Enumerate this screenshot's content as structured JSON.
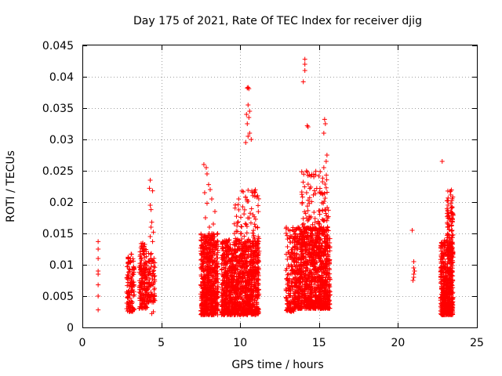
{
  "chart_data": {
    "type": "scatter",
    "title": "Day 175 of 2021, Rate Of TEC Index for receiver djig",
    "xlabel": "GPS time / hours",
    "ylabel": "ROTI / TECUs",
    "xlim": [
      0,
      25
    ],
    "ylim": [
      0,
      0.045
    ],
    "xticks": [
      "0",
      "5",
      "10",
      "15",
      "20",
      "25"
    ],
    "yticks": [
      "0",
      "0.005",
      "0.01",
      "0.015",
      "0.02",
      "0.025",
      "0.03",
      "0.035",
      "0.04",
      "0.045"
    ],
    "grid": true,
    "marker": "+",
    "color": "#ff0000",
    "series": [
      {
        "name": "ROTI",
        "points": [
          [
            1.0,
            0.0137
          ],
          [
            1.0,
            0.0125
          ],
          [
            1.0,
            0.011
          ],
          [
            1.0,
            0.009
          ],
          [
            1.0,
            0.0085
          ],
          [
            1.0,
            0.0068
          ],
          [
            1.0,
            0.005
          ],
          [
            1.0,
            0.0028
          ],
          [
            20.9,
            0.0155
          ],
          [
            21.0,
            0.0105
          ],
          [
            21.0,
            0.0095
          ],
          [
            21.05,
            0.009
          ],
          [
            21.0,
            0.0085
          ],
          [
            21.0,
            0.008
          ],
          [
            20.95,
            0.0075
          ],
          [
            22.8,
            0.0265
          ],
          [
            14.1,
            0.0428
          ],
          [
            14.1,
            0.042
          ],
          [
            14.1,
            0.041
          ],
          [
            14.0,
            0.0392
          ],
          [
            14.3,
            0.032
          ],
          [
            14.25,
            0.0322
          ],
          [
            10.5,
            0.0383
          ],
          [
            10.45,
            0.0382
          ],
          [
            10.55,
            0.0381
          ],
          [
            10.5,
            0.0355
          ],
          [
            10.6,
            0.0345
          ],
          [
            10.4,
            0.034
          ],
          [
            10.55,
            0.0335
          ],
          [
            10.45,
            0.0325
          ],
          [
            10.6,
            0.031
          ],
          [
            10.5,
            0.0305
          ],
          [
            10.7,
            0.03
          ],
          [
            10.35,
            0.0295
          ],
          [
            15.35,
            0.0332
          ],
          [
            15.4,
            0.0325
          ],
          [
            15.3,
            0.031
          ],
          [
            15.5,
            0.0275
          ],
          [
            15.45,
            0.0265
          ],
          [
            15.3,
            0.0255
          ],
          [
            4.3,
            0.0235
          ],
          [
            4.25,
            0.0222
          ],
          [
            4.45,
            0.0218
          ],
          [
            4.3,
            0.0195
          ],
          [
            4.35,
            0.0188
          ],
          [
            4.4,
            0.0168
          ],
          [
            4.35,
            0.016
          ],
          [
            4.5,
            0.0152
          ],
          [
            4.3,
            0.0145
          ],
          [
            4.45,
            0.0137
          ],
          [
            4.5,
            0.0025
          ],
          [
            4.4,
            0.0022
          ],
          [
            7.7,
            0.026
          ],
          [
            7.85,
            0.0255
          ],
          [
            7.9,
            0.0245
          ],
          [
            8.0,
            0.0228
          ],
          [
            8.1,
            0.022
          ],
          [
            7.75,
            0.0215
          ],
          [
            8.2,
            0.0205
          ],
          [
            7.9,
            0.0198
          ],
          [
            8.4,
            0.0185
          ],
          [
            7.8,
            0.0175
          ],
          [
            8.3,
            0.0165
          ],
          [
            8.05,
            0.016
          ]
        ],
        "clusters": [
          {
            "x": [
              2.8,
              3.3
            ],
            "y": [
              0.0025,
              0.0118
            ],
            "n": 120
          },
          {
            "x": [
              3.6,
              4.1
            ],
            "y": [
              0.003,
              0.0135
            ],
            "n": 170
          },
          {
            "x": [
              4.1,
              4.6
            ],
            "y": [
              0.004,
              0.012
            ],
            "n": 90
          },
          {
            "x": [
              7.5,
              8.6
            ],
            "y": [
              0.002,
              0.015
            ],
            "n": 650
          },
          {
            "x": [
              8.8,
              11.2
            ],
            "y": [
              0.002,
              0.014
            ],
            "n": 1100
          },
          {
            "x": [
              9.6,
              11.2
            ],
            "y": [
              0.006,
              0.022
            ],
            "n": 160
          },
          {
            "x": [
              12.9,
              13.4
            ],
            "y": [
              0.0025,
              0.016
            ],
            "n": 130
          },
          {
            "x": [
              13.4,
              15.7
            ],
            "y": [
              0.003,
              0.016
            ],
            "n": 1050
          },
          {
            "x": [
              13.9,
              15.6
            ],
            "y": [
              0.01,
              0.025
            ],
            "n": 200
          },
          {
            "x": [
              22.7,
              23.5
            ],
            "y": [
              0.002,
              0.014
            ],
            "n": 520
          },
          {
            "x": [
              23.1,
              23.5
            ],
            "y": [
              0.012,
              0.022
            ],
            "n": 90
          }
        ]
      }
    ]
  }
}
